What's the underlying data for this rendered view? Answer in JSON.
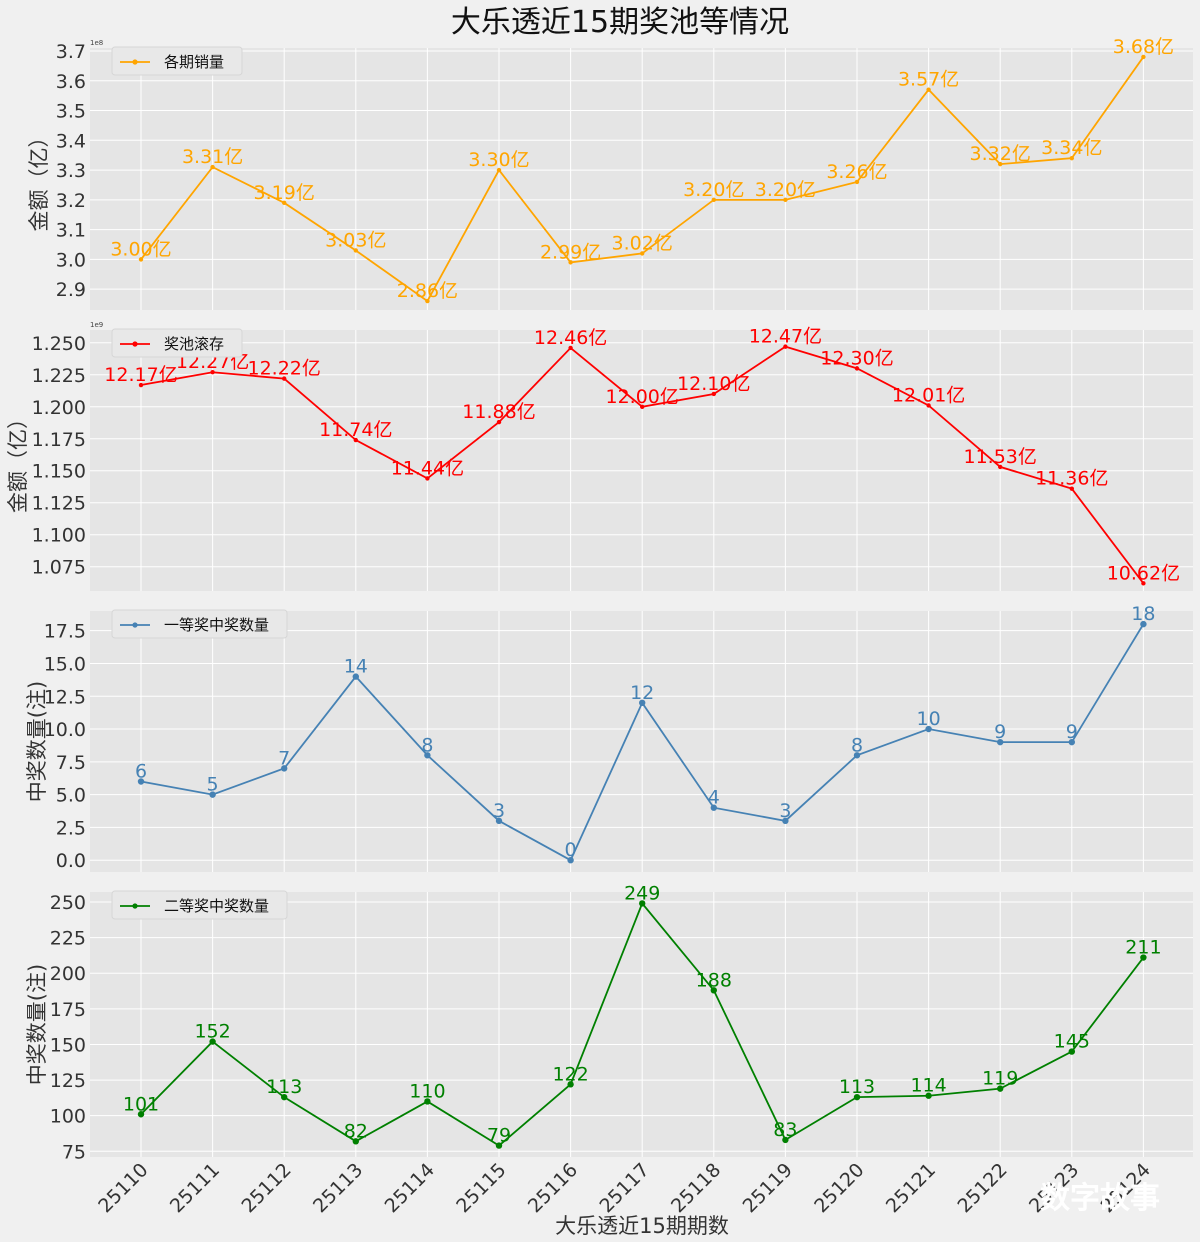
{
  "title": "大乐透近15期奖池等情况",
  "xlabel": "大乐透近15期期数",
  "watermark": "数字故事",
  "chart_data": [
    {
      "type": "line",
      "legend": "各期销量",
      "color": "#FFA500",
      "ylabel": "金额（亿）",
      "offset_text": "1e8",
      "categories": [
        "25110",
        "25111",
        "25112",
        "25113",
        "25114",
        "25115",
        "25116",
        "25117",
        "25118",
        "25119",
        "25120",
        "25121",
        "25122",
        "25123",
        "25124"
      ],
      "values": [
        3.0,
        3.31,
        3.19,
        3.03,
        2.86,
        3.3,
        2.99,
        3.02,
        3.2,
        3.2,
        3.26,
        3.57,
        3.32,
        3.34,
        3.68
      ],
      "labels": [
        "3.00亿",
        "3.31亿",
        "3.19亿",
        "3.03亿",
        "2.86亿",
        "3.30亿",
        "2.99亿",
        "3.02亿",
        "3.20亿",
        "3.20亿",
        "3.26亿",
        "3.57亿",
        "3.32亿",
        "3.34亿",
        "3.68亿"
      ],
      "ylim": [
        2.83,
        3.71
      ],
      "yticks": [
        2.9,
        3.0,
        3.1,
        3.2,
        3.3,
        3.4,
        3.5,
        3.6,
        3.7
      ],
      "ytick_labels": [
        "2.9",
        "3.0",
        "3.1",
        "3.2",
        "3.3",
        "3.4",
        "3.5",
        "3.6",
        "3.7"
      ]
    },
    {
      "type": "line",
      "legend": "奖池滚存",
      "color": "#FF0000",
      "ylabel": "金额（亿）",
      "offset_text": "1e9",
      "categories": [
        "25110",
        "25111",
        "25112",
        "25113",
        "25114",
        "25115",
        "25116",
        "25117",
        "25118",
        "25119",
        "25120",
        "25121",
        "25122",
        "25123",
        "25124"
      ],
      "values": [
        12.17,
        12.27,
        12.22,
        11.74,
        11.44,
        11.88,
        12.46,
        12.0,
        12.1,
        12.47,
        12.3,
        12.01,
        11.53,
        11.36,
        10.62
      ],
      "labels": [
        "12.17亿",
        "12.27亿",
        "12.22亿",
        "11.74亿",
        "11.44亿",
        "11.88亿",
        "12.46亿",
        "12.00亿",
        "12.10亿",
        "12.47亿",
        "12.30亿",
        "12.01亿",
        "11.53亿",
        "11.36亿",
        "10.62亿"
      ],
      "ylim": [
        10.56,
        12.6
      ],
      "yticks": [
        10.75,
        11.0,
        11.25,
        11.5,
        11.75,
        12.0,
        12.25,
        12.5
      ],
      "ytick_labels": [
        "1.075",
        "1.100",
        "1.125",
        "1.150",
        "1.175",
        "1.200",
        "1.225",
        "1.250"
      ]
    },
    {
      "type": "line",
      "legend": "一等奖中奖数量",
      "color": "#4682B4",
      "ylabel": "中奖数量(注)",
      "categories": [
        "25110",
        "25111",
        "25112",
        "25113",
        "25114",
        "25115",
        "25116",
        "25117",
        "25118",
        "25119",
        "25120",
        "25121",
        "25122",
        "25123",
        "25124"
      ],
      "values": [
        6,
        5,
        7,
        14,
        8,
        3,
        0,
        12,
        4,
        3,
        8,
        10,
        9,
        9,
        18
      ],
      "labels": [
        "6",
        "5",
        "7",
        "14",
        "8",
        "3",
        "0",
        "12",
        "4",
        "3",
        "8",
        "10",
        "9",
        "9",
        "18"
      ],
      "ylim": [
        -0.9,
        19.0
      ],
      "yticks": [
        0,
        2.5,
        5,
        7.5,
        10,
        12.5,
        15,
        17.5
      ],
      "ytick_labels": [
        "0.0",
        "2.5",
        "5.0",
        "7.5",
        "10.0",
        "12.5",
        "15.0",
        "17.5"
      ]
    },
    {
      "type": "line",
      "legend": "二等奖中奖数量",
      "color": "#008000",
      "ylabel": "中奖数量(注)",
      "categories": [
        "25110",
        "25111",
        "25112",
        "25113",
        "25114",
        "25115",
        "25116",
        "25117",
        "25118",
        "25119",
        "25120",
        "25121",
        "25122",
        "25123",
        "25124"
      ],
      "values": [
        101,
        152,
        113,
        82,
        110,
        79,
        122,
        249,
        188,
        83,
        113,
        114,
        119,
        145,
        211
      ],
      "labels": [
        "101",
        "152",
        "113",
        "82",
        "110",
        "79",
        "122",
        "249",
        "188",
        "83",
        "113",
        "114",
        "119",
        "145",
        "211"
      ],
      "ylim": [
        71,
        257
      ],
      "yticks": [
        75,
        100,
        125,
        150,
        175,
        200,
        225,
        250
      ],
      "ytick_labels": [
        "75",
        "100",
        "125",
        "150",
        "175",
        "200",
        "225",
        "250"
      ]
    }
  ]
}
